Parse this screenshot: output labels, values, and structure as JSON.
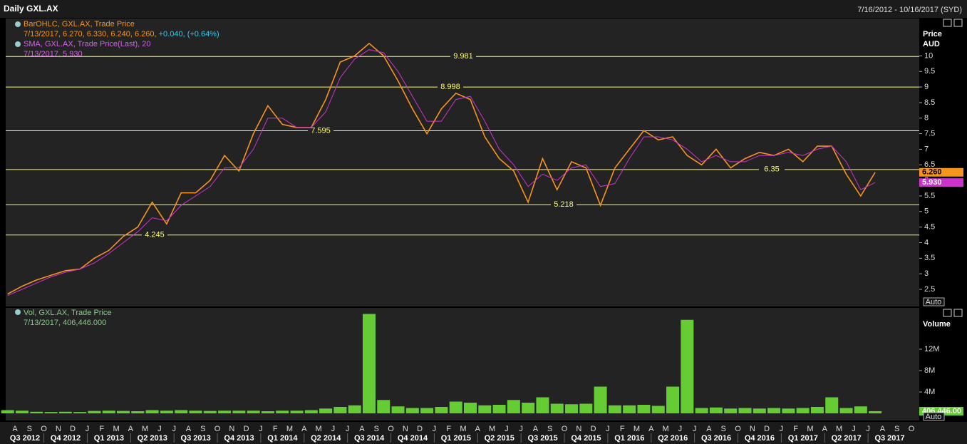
{
  "header": {
    "title": "Daily GXL.AX",
    "range": "7/16/2012 - 10/16/2017 (SYD)"
  },
  "chart_data": [
    {
      "type": "line",
      "y_label": "Price",
      "y_unit": "AUD",
      "button": "Auto",
      "x": [
        "2012-07",
        "2012-08",
        "2012-09",
        "2012-10",
        "2012-11",
        "2012-12",
        "2013-01",
        "2013-02",
        "2013-03",
        "2013-04",
        "2013-05",
        "2013-06",
        "2013-07",
        "2013-08",
        "2013-09",
        "2013-10",
        "2013-11",
        "2013-12",
        "2014-01",
        "2014-02",
        "2014-03",
        "2014-04",
        "2014-05",
        "2014-06",
        "2014-07",
        "2014-08",
        "2014-09",
        "2014-10",
        "2014-11",
        "2014-12",
        "2015-01",
        "2015-02",
        "2015-03",
        "2015-04",
        "2015-05",
        "2015-06",
        "2015-07",
        "2015-08",
        "2015-09",
        "2015-10",
        "2015-11",
        "2015-12",
        "2016-01",
        "2016-02",
        "2016-03",
        "2016-04",
        "2016-05",
        "2016-06",
        "2016-07",
        "2016-08",
        "2016-09",
        "2016-10",
        "2016-11",
        "2016-12",
        "2017-01",
        "2017-02",
        "2017-03",
        "2017-04",
        "2017-05",
        "2017-06",
        "2017-07"
      ],
      "series": [
        {
          "name": "BarOHLC, GXL.AX, Trade Price",
          "color": "#f7941d",
          "legend_detail": "7/13/2017, 6.270, 6.330, 6.240, 6.260,",
          "legend_change": "+0.040, (+0.64%)",
          "last_label": "6.260",
          "values": [
            2.35,
            2.6,
            2.8,
            2.95,
            3.1,
            3.15,
            3.5,
            3.75,
            4.2,
            4.5,
            5.3,
            4.6,
            5.6,
            5.6,
            6.0,
            6.8,
            6.3,
            7.5,
            8.4,
            7.8,
            7.7,
            7.7,
            8.6,
            9.8,
            10.0,
            10.4,
            10.0,
            9.2,
            8.3,
            7.5,
            8.3,
            8.8,
            8.6,
            7.4,
            6.7,
            6.3,
            5.3,
            6.7,
            5.7,
            6.6,
            6.4,
            5.2,
            6.4,
            7.0,
            7.6,
            7.3,
            7.4,
            6.8,
            6.5,
            7.0,
            6.4,
            6.7,
            6.9,
            6.8,
            7.0,
            6.6,
            7.1,
            7.1,
            6.2,
            5.5,
            6.26
          ]
        },
        {
          "name": "SMA, GXL.AX, Trade Price(Last), 20",
          "color": "#cc33cc",
          "legend_detail": "7/13/2017, 5.930",
          "last_label": "5.930",
          "values": [
            2.3,
            2.5,
            2.7,
            2.9,
            3.05,
            3.15,
            3.35,
            3.65,
            4.0,
            4.35,
            4.8,
            4.7,
            5.2,
            5.5,
            5.8,
            6.4,
            6.4,
            7.0,
            8.0,
            8.0,
            7.7,
            7.7,
            8.2,
            9.3,
            9.9,
            10.2,
            10.1,
            9.5,
            8.7,
            7.9,
            7.9,
            8.6,
            8.7,
            7.9,
            7.0,
            6.5,
            5.8,
            6.2,
            6.0,
            6.4,
            6.5,
            5.8,
            5.9,
            6.7,
            7.4,
            7.4,
            7.3,
            7.0,
            6.6,
            6.8,
            6.6,
            6.6,
            6.8,
            6.8,
            6.9,
            6.8,
            7.0,
            7.1,
            6.6,
            5.7,
            5.93
          ]
        }
      ],
      "levels": [
        9.981,
        8.998,
        7.595,
        6.35,
        5.218,
        4.245
      ],
      "level_color": "#ffff66",
      "ylim": [
        1.95,
        11.2
      ],
      "yticks": [
        2.5,
        3,
        3.5,
        4,
        4.5,
        5,
        5.5,
        6,
        6.5,
        7,
        7.5,
        8,
        8.5,
        9,
        9.5,
        10
      ]
    },
    {
      "type": "bar",
      "y_label": "Volume",
      "button": "Auto",
      "x": [
        "2012-07",
        "2012-08",
        "2012-09",
        "2012-10",
        "2012-11",
        "2012-12",
        "2013-01",
        "2013-02",
        "2013-03",
        "2013-04",
        "2013-05",
        "2013-06",
        "2013-07",
        "2013-08",
        "2013-09",
        "2013-10",
        "2013-11",
        "2013-12",
        "2014-01",
        "2014-02",
        "2014-03",
        "2014-04",
        "2014-05",
        "2014-06",
        "2014-07",
        "2014-08",
        "2014-09",
        "2014-10",
        "2014-11",
        "2014-12",
        "2015-01",
        "2015-02",
        "2015-03",
        "2015-04",
        "2015-05",
        "2015-06",
        "2015-07",
        "2015-08",
        "2015-09",
        "2015-10",
        "2015-11",
        "2015-12",
        "2016-01",
        "2016-02",
        "2016-03",
        "2016-04",
        "2016-05",
        "2016-06",
        "2016-07",
        "2016-08",
        "2016-09",
        "2016-10",
        "2016-11",
        "2016-12",
        "2017-01",
        "2017-02",
        "2017-03",
        "2017-04",
        "2017-05",
        "2017-06",
        "2017-07"
      ],
      "series": [
        {
          "name": "Vol, GXL.AX, Trade Price",
          "color": "#66cc33",
          "legend_detail": "7/13/2017, 406,446.000",
          "last_label": "406,446.00",
          "values": [
            600000,
            500000,
            300000,
            250000,
            300000,
            250000,
            450000,
            500000,
            450000,
            400000,
            600000,
            500000,
            600000,
            500000,
            450000,
            500000,
            500000,
            500000,
            400000,
            500000,
            500000,
            600000,
            900000,
            1200000,
            1500000,
            18600000,
            2500000,
            1300000,
            1000000,
            1000000,
            1200000,
            2200000,
            2000000,
            1500000,
            1600000,
            2500000,
            2000000,
            3000000,
            1800000,
            1700000,
            1800000,
            5000000,
            1500000,
            1500000,
            1600000,
            1400000,
            5000000,
            17500000,
            1000000,
            1100000,
            900000,
            1000000,
            900000,
            1000000,
            900000,
            1000000,
            1200000,
            3000000,
            1000000,
            1300000,
            406446
          ]
        }
      ],
      "ylim": [
        0,
        20000000
      ],
      "yticks": [
        {
          "value": 4000000,
          "label": "4M"
        },
        {
          "value": 8000000,
          "label": "8M"
        },
        {
          "value": 12000000,
          "label": "12M"
        }
      ]
    }
  ],
  "x_axis": {
    "months": [
      "A",
      "S",
      "O",
      "N",
      "D",
      "J",
      "F",
      "M",
      "A",
      "M",
      "J",
      "J",
      "A",
      "S",
      "O",
      "N",
      "D",
      "J",
      "F",
      "M",
      "A",
      "M",
      "J",
      "J",
      "A",
      "S",
      "O",
      "N",
      "D",
      "J",
      "F",
      "M",
      "A",
      "M",
      "J",
      "J",
      "A",
      "S",
      "O",
      "N",
      "D",
      "J",
      "F",
      "M",
      "A",
      "M",
      "J",
      "J",
      "A",
      "S",
      "O",
      "N",
      "D",
      "J",
      "F",
      "M",
      "A",
      "M",
      "J",
      "J",
      "A",
      "S",
      "O"
    ],
    "quarters": [
      "Q3 2012",
      "Q4 2012",
      "Q1 2013",
      "Q2 2013",
      "Q3 2013",
      "Q4 2013",
      "Q1 2014",
      "Q2 2014",
      "Q3 2014",
      "Q4 2014",
      "Q1 2015",
      "Q2 2015",
      "Q3 2015",
      "Q4 2015",
      "Q1 2016",
      "Q2 2016",
      "Q3 2016",
      "Q4 2016",
      "Q1 2017",
      "Q2 2017",
      "Q3 2017"
    ]
  }
}
